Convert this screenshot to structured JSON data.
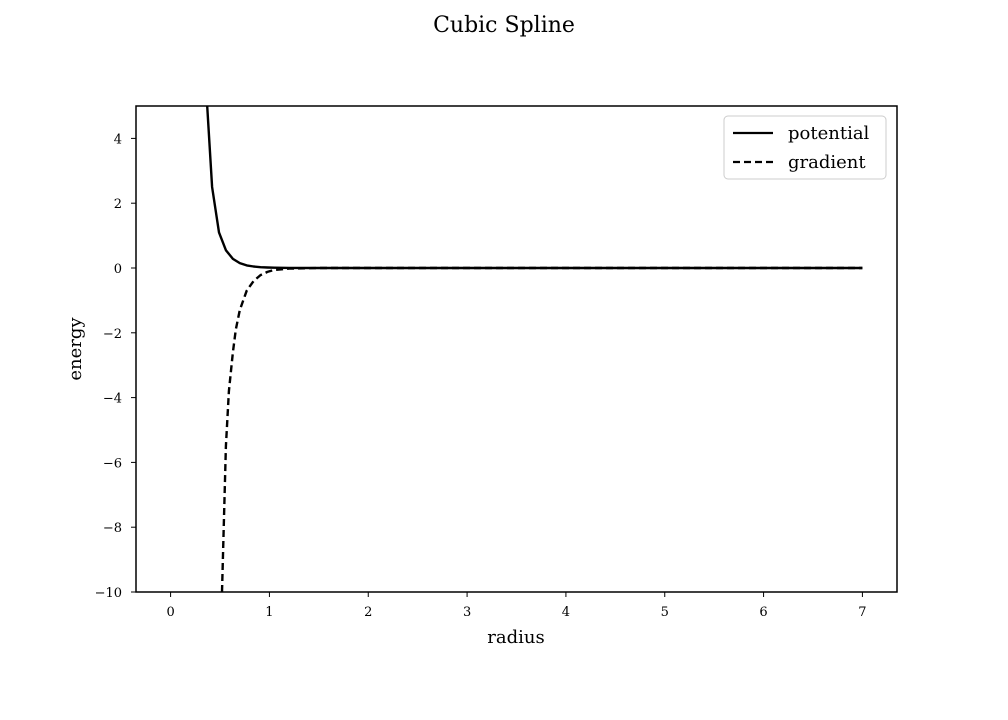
{
  "chart_data": {
    "type": "line",
    "title": "Cubic Spline",
    "xlabel": "radius",
    "ylabel": "energy",
    "xlim": [
      -0.35,
      7.35
    ],
    "ylim": [
      -10,
      5
    ],
    "xticks": [
      0,
      1,
      2,
      3,
      4,
      5,
      6,
      7
    ],
    "xtick_labels": [
      "0",
      "1",
      "2",
      "3",
      "4",
      "5",
      "6",
      "7"
    ],
    "yticks": [
      -10,
      -8,
      -6,
      -4,
      -2,
      0,
      2,
      4
    ],
    "ytick_labels": [
      "−10",
      "−8",
      "−6",
      "−4",
      "−2",
      "0",
      "2",
      "4"
    ],
    "grid": false,
    "legend": "top-right",
    "series": [
      {
        "name": "potential",
        "style": "solid",
        "color": "#000000",
        "x": [
          0.37,
          0.42,
          0.49,
          0.56,
          0.63,
          0.7,
          0.77,
          0.84,
          0.91,
          0.98,
          1.05,
          1.2,
          1.5,
          2,
          3,
          4,
          5,
          6,
          7
        ],
        "y": [
          5.0,
          2.5,
          1.1,
          0.55,
          0.28,
          0.15,
          0.08,
          0.045,
          0.025,
          0.015,
          0.008,
          0.003,
          0.0,
          0.0,
          0.0,
          0.0,
          0.0,
          0.0,
          0.0
        ]
      },
      {
        "name": "gradient",
        "style": "dashed",
        "color": "#000000",
        "x": [
          0.52,
          0.56,
          0.59,
          0.63,
          0.66,
          0.7,
          0.77,
          0.84,
          0.91,
          0.98,
          1.05,
          1.2,
          1.5,
          2,
          3,
          4,
          5,
          6,
          7
        ],
        "y": [
          -10.0,
          -5.5,
          -3.8,
          -2.6,
          -1.9,
          -1.3,
          -0.7,
          -0.4,
          -0.22,
          -0.12,
          -0.06,
          -0.02,
          0.0,
          0.0,
          0.0,
          0.0,
          0.0,
          0.0,
          0.0
        ]
      }
    ]
  }
}
